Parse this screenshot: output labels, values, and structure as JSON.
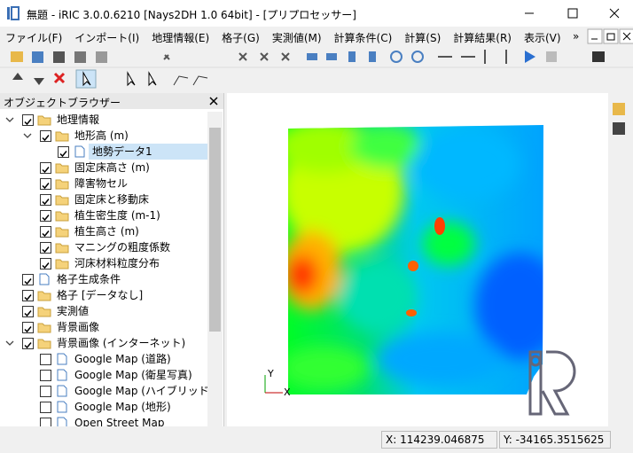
{
  "window": {
    "title": "無題 - iRIC 3.0.0.6210 [Nays2DH 1.0 64bit] - [プリプロセッサー]"
  },
  "menu": {
    "items": [
      "ファイル(F)",
      "インポート(I)",
      "地理情報(E)",
      "格子(G)",
      "実測値(M)",
      "計算条件(C)",
      "計算(S)",
      "計算結果(R)",
      "表示(V)"
    ],
    "overflow": "»"
  },
  "panel": {
    "title": "オブジェクトブラウザー"
  },
  "tree": {
    "nodes": [
      {
        "label": "地理情報",
        "icon": "folder",
        "checked": true,
        "children": [
          {
            "label": "地形高 (m)",
            "icon": "folder",
            "checked": true,
            "children": [
              {
                "label": "地勢データ1",
                "icon": "file",
                "checked": true,
                "selected": true
              }
            ]
          },
          {
            "label": "固定床高さ (m)",
            "icon": "folder",
            "checked": true
          },
          {
            "label": "障害物セル",
            "icon": "folder",
            "checked": true
          },
          {
            "label": "固定床と移動床",
            "icon": "folder",
            "checked": true
          },
          {
            "label": "植生密生度 (m-1)",
            "icon": "folder",
            "checked": true
          },
          {
            "label": "植生高さ (m)",
            "icon": "folder",
            "checked": true
          },
          {
            "label": "マニングの粗度係数",
            "icon": "folder",
            "checked": true
          },
          {
            "label": "河床材料粒度分布",
            "icon": "folder",
            "checked": true
          }
        ]
      },
      {
        "label": "格子生成条件",
        "icon": "file",
        "checked": true
      },
      {
        "label": "格子 [データなし]",
        "icon": "folder",
        "checked": true
      },
      {
        "label": "実測値",
        "icon": "folder",
        "checked": true
      },
      {
        "label": "背景画像",
        "icon": "folder",
        "checked": true
      },
      {
        "label": "背景画像 (インターネット)",
        "icon": "folder",
        "checked": true,
        "children": [
          {
            "label": "Google Map (道路)",
            "icon": "file",
            "checked": false
          },
          {
            "label": "Google Map (衛星写真)",
            "icon": "file",
            "checked": false
          },
          {
            "label": "Google Map (ハイブリッド)",
            "icon": "file",
            "checked": false
          },
          {
            "label": "Google Map (地形)",
            "icon": "file",
            "checked": false
          },
          {
            "label": "Open Street Map",
            "icon": "file",
            "checked": false
          }
        ]
      }
    ]
  },
  "axes": {
    "y": "Y",
    "x": "X"
  },
  "status": {
    "x": "X: 114239.046875",
    "y": "Y: -34165.3515625"
  }
}
